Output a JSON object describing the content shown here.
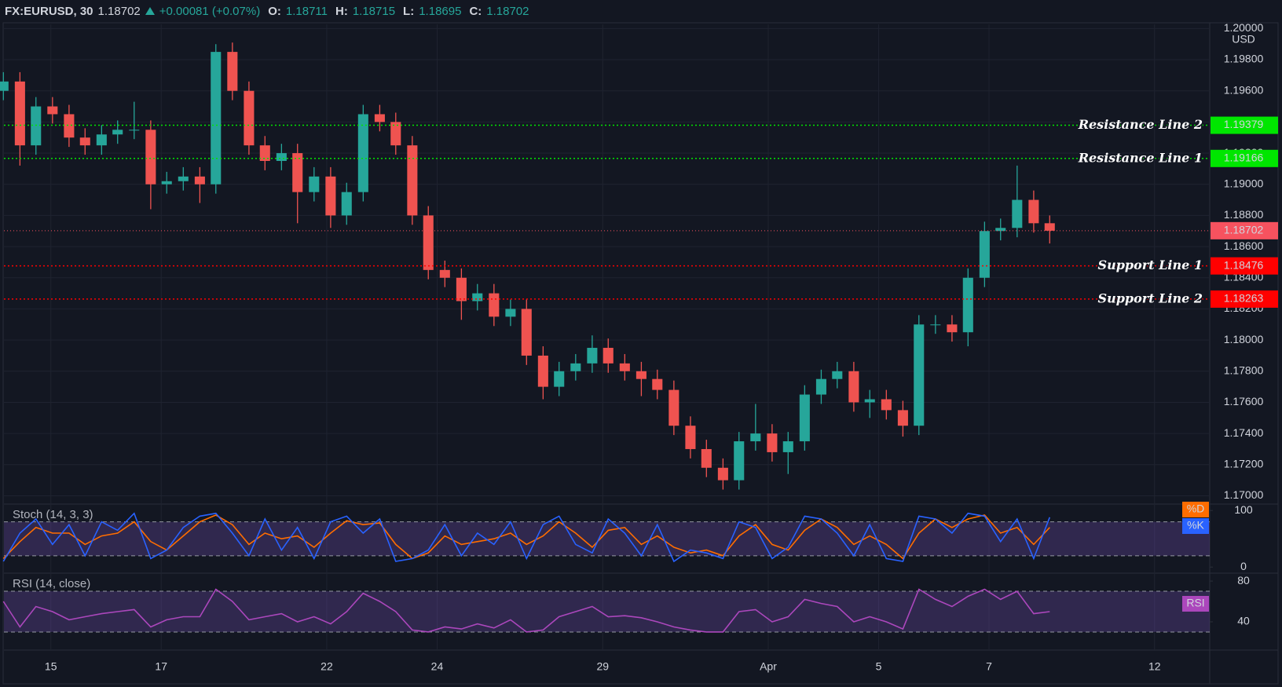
{
  "header": {
    "symbol": "FX:EURUSD, 30",
    "last": 1.18702,
    "change": "+0.00081 (+0.07%)",
    "ohlc": [
      {
        "label": "O:",
        "value": 1.18711
      },
      {
        "label": "H:",
        "value": 1.18715
      },
      {
        "label": "L:",
        "value": 1.18695
      },
      {
        "label": "C:",
        "value": 1.18702
      }
    ]
  },
  "chart_data": [
    {
      "type": "candlestick",
      "unit": "USD",
      "up_color": "#26a69a",
      "down_color": "#ef5350",
      "grid": true,
      "ylim": [
        1.16952,
        1.20027
      ],
      "yticks": [
        {
          "value": 1.17,
          "label": "1.17000"
        },
        {
          "value": 1.172,
          "label": "1.17200"
        },
        {
          "value": 1.174,
          "label": "1.17400"
        },
        {
          "value": 1.176,
          "label": "1.17600"
        },
        {
          "value": 1.178,
          "label": "1.17800"
        },
        {
          "value": 1.18,
          "label": "1.18000"
        },
        {
          "value": 1.182,
          "label": "1.18200"
        },
        {
          "value": 1.184,
          "label": "1.18400"
        },
        {
          "value": 1.186,
          "label": "1.18600"
        },
        {
          "value": 1.188,
          "label": "1.18800"
        },
        {
          "value": 1.19,
          "label": "1.19000"
        },
        {
          "value": 1.192,
          "label": "1.19200"
        },
        {
          "value": 1.194,
          "label": "1.19400"
        },
        {
          "value": 1.196,
          "label": "1.19600"
        },
        {
          "value": 1.198,
          "label": "1.19800"
        },
        {
          "value": 1.2,
          "label": "1.20000"
        }
      ],
      "xlim": [
        -0.85,
        21
      ],
      "x": [
        -0.86,
        -0.56,
        -0.27,
        0.03,
        0.33,
        0.62,
        0.92,
        1.21,
        1.51,
        1.81,
        2.1,
        2.4,
        2.7,
        2.99,
        3.29,
        3.59,
        3.88,
        4.18,
        4.47,
        4.77,
        5.07,
        5.36,
        5.66,
        5.96,
        6.25,
        6.55,
        6.84,
        7.14,
        7.44,
        7.73,
        8.03,
        8.33,
        8.62,
        8.92,
        9.21,
        9.51,
        9.81,
        10.1,
        10.4,
        10.7,
        10.99,
        11.29,
        11.59,
        11.88,
        12.18,
        12.47,
        12.77,
        13.07,
        13.36,
        13.66,
        13.96,
        14.25,
        14.55,
        14.84,
        15.14,
        15.44,
        15.73,
        16.03,
        16.33,
        16.62,
        16.92,
        17.21,
        17.51,
        17.81,
        18.1
      ],
      "open": [
        1.196,
        1.1966,
        1.1925,
        1.195,
        1.1945,
        1.193,
        1.1925,
        1.1932,
        1.1935,
        1.1935,
        1.19,
        1.1902,
        1.1905,
        1.19,
        1.1985,
        1.196,
        1.1925,
        1.1915,
        1.192,
        1.1895,
        1.1905,
        1.188,
        1.1895,
        1.1945,
        1.194,
        1.1925,
        1.188,
        1.1845,
        1.184,
        1.1825,
        1.183,
        1.1815,
        1.182,
        1.179,
        1.177,
        1.178,
        1.1785,
        1.1795,
        1.1785,
        1.178,
        1.1775,
        1.1768,
        1.1745,
        1.173,
        1.1718,
        1.171,
        1.1735,
        1.174,
        1.1728,
        1.1735,
        1.1765,
        1.1775,
        1.178,
        1.176,
        1.1762,
        1.1755,
        1.1745,
        1.181,
        1.181,
        1.1805,
        1.184,
        1.187,
        1.1872,
        1.189,
        1.1875
      ],
      "high": [
        1.1972,
        1.1972,
        1.1956,
        1.1956,
        1.1951,
        1.1936,
        1.1938,
        1.1941,
        1.1953,
        1.1941,
        1.1908,
        1.1911,
        1.1911,
        1.199,
        1.1991,
        1.1966,
        1.1931,
        1.1926,
        1.1926,
        1.1911,
        1.1911,
        1.1901,
        1.1951,
        1.1951,
        1.1946,
        1.1931,
        1.1886,
        1.1851,
        1.1846,
        1.1836,
        1.1836,
        1.1826,
        1.1826,
        1.1796,
        1.1786,
        1.1791,
        1.1803,
        1.1801,
        1.1791,
        1.1786,
        1.1781,
        1.1774,
        1.1751,
        1.1736,
        1.1724,
        1.1741,
        1.1759,
        1.1746,
        1.1741,
        1.1771,
        1.1781,
        1.1786,
        1.1786,
        1.1768,
        1.1768,
        1.1761,
        1.1816,
        1.1816,
        1.1816,
        1.1846,
        1.1876,
        1.1878,
        1.1912,
        1.1896,
        1.188
      ],
      "low": [
        1.1954,
        1.1912,
        1.1919,
        1.1939,
        1.1924,
        1.1919,
        1.1919,
        1.1926,
        1.1929,
        1.1884,
        1.1894,
        1.1896,
        1.1888,
        1.1894,
        1.1954,
        1.1919,
        1.1909,
        1.1909,
        1.1875,
        1.1889,
        1.1872,
        1.1874,
        1.1889,
        1.1934,
        1.1919,
        1.1874,
        1.1839,
        1.1834,
        1.1813,
        1.1819,
        1.1809,
        1.1809,
        1.1784,
        1.1762,
        1.1764,
        1.1774,
        1.1779,
        1.1779,
        1.1774,
        1.1764,
        1.1762,
        1.1739,
        1.1724,
        1.1712,
        1.1704,
        1.1704,
        1.1729,
        1.1722,
        1.1714,
        1.1729,
        1.1759,
        1.1769,
        1.1754,
        1.175,
        1.1749,
        1.1738,
        1.1739,
        1.1804,
        1.1799,
        1.1796,
        1.1834,
        1.1864,
        1.1866,
        1.1869,
        1.1862
      ],
      "close": [
        1.1966,
        1.1925,
        1.195,
        1.1945,
        1.193,
        1.1925,
        1.1932,
        1.1935,
        1.1935,
        1.19,
        1.1902,
        1.1905,
        1.19,
        1.1985,
        1.196,
        1.1925,
        1.1915,
        1.192,
        1.1895,
        1.1905,
        1.188,
        1.1895,
        1.1945,
        1.194,
        1.1925,
        1.188,
        1.1845,
        1.184,
        1.1825,
        1.183,
        1.1815,
        1.182,
        1.179,
        1.177,
        1.178,
        1.1785,
        1.1795,
        1.1785,
        1.178,
        1.1775,
        1.1768,
        1.1745,
        1.173,
        1.1718,
        1.171,
        1.1735,
        1.174,
        1.1728,
        1.1735,
        1.1765,
        1.1775,
        1.178,
        1.176,
        1.1762,
        1.1755,
        1.1745,
        1.181,
        1.181,
        1.1805,
        1.184,
        1.187,
        1.1872,
        1.189,
        1.1875,
        1.18702
      ],
      "last_price": {
        "value": 1.18702,
        "color": "#f7525f"
      },
      "levels": [
        {
          "name": "Resistance Line 2",
          "value": 1.19379,
          "color": "#00e600",
          "text_color": "#000000"
        },
        {
          "name": "Resistance Line 1",
          "value": 1.19166,
          "color": "#00e600",
          "text_color": "#000000"
        },
        {
          "name": "Support Line 1",
          "value": 1.18476,
          "color": "#ff0000",
          "text_color": "#ffffff"
        },
        {
          "name": "Support Line 2",
          "value": 1.18263,
          "color": "#ff0000",
          "text_color": "#ffffff"
        }
      ]
    },
    {
      "type": "line",
      "title": "Stoch (14, 3, 3)",
      "ylim": [
        -8,
        110
      ],
      "yticks": [
        0,
        100
      ],
      "bands": [
        20,
        80
      ],
      "band_color": "#7e57c2",
      "xlim": [
        -0.85,
        21
      ],
      "x": [
        -0.86,
        -0.56,
        -0.27,
        0.03,
        0.33,
        0.62,
        0.92,
        1.21,
        1.51,
        1.81,
        2.1,
        2.4,
        2.7,
        2.99,
        3.29,
        3.59,
        3.88,
        4.18,
        4.47,
        4.77,
        5.07,
        5.36,
        5.66,
        5.96,
        6.25,
        6.55,
        6.84,
        7.14,
        7.44,
        7.73,
        8.03,
        8.33,
        8.62,
        8.92,
        9.21,
        9.51,
        9.81,
        10.1,
        10.4,
        10.7,
        10.99,
        11.29,
        11.59,
        11.88,
        12.18,
        12.47,
        12.77,
        13.07,
        13.36,
        13.66,
        13.96,
        14.25,
        14.55,
        14.84,
        15.14,
        15.44,
        15.73,
        16.03,
        16.33,
        16.62,
        16.92,
        17.21,
        17.51,
        17.81,
        18.1
      ],
      "series": [
        {
          "name": "%D",
          "color": "#ff6d00",
          "values": [
            15,
            45,
            70,
            60,
            60,
            40,
            55,
            60,
            80,
            45,
            30,
            55,
            80,
            92,
            75,
            40,
            60,
            50,
            55,
            35,
            60,
            82,
            75,
            78,
            40,
            15,
            25,
            55,
            40,
            45,
            50,
            60,
            40,
            55,
            80,
            60,
            35,
            65,
            70,
            40,
            55,
            35,
            25,
            30,
            20,
            55,
            75,
            40,
            30,
            65,
            85,
            70,
            40,
            55,
            40,
            15,
            60,
            85,
            70,
            85,
            92,
            60,
            70,
            40,
            70
          ]
        },
        {
          "name": "%K",
          "color": "#2962ff",
          "values": [
            10,
            60,
            85,
            40,
            75,
            20,
            80,
            65,
            95,
            15,
            30,
            70,
            90,
            95,
            60,
            20,
            85,
            30,
            70,
            15,
            80,
            90,
            60,
            85,
            10,
            15,
            30,
            75,
            20,
            60,
            40,
            80,
            15,
            75,
            90,
            40,
            25,
            85,
            60,
            20,
            75,
            10,
            30,
            25,
            15,
            80,
            70,
            15,
            35,
            90,
            85,
            60,
            20,
            75,
            15,
            10,
            90,
            85,
            60,
            95,
            90,
            45,
            85,
            15,
            88
          ]
        }
      ]
    },
    {
      "type": "line",
      "title": "RSI (14, close)",
      "ylim": [
        13,
        87
      ],
      "yticks": [
        40,
        80
      ],
      "bands": [
        30,
        70
      ],
      "band_color": "#7e57c2",
      "xlim": [
        -0.85,
        21
      ],
      "xticks": [
        {
          "value": 0,
          "label": "15"
        },
        {
          "value": 2,
          "label": "17"
        },
        {
          "value": 5,
          "label": "22"
        },
        {
          "value": 7,
          "label": "24"
        },
        {
          "value": 10,
          "label": "29"
        },
        {
          "value": 13,
          "label": "Apr"
        },
        {
          "value": 15,
          "label": "5"
        },
        {
          "value": 17,
          "label": "7"
        },
        {
          "value": 20,
          "label": "12"
        }
      ],
      "x": [
        -0.86,
        -0.56,
        -0.27,
        0.03,
        0.33,
        0.62,
        0.92,
        1.21,
        1.51,
        1.81,
        2.1,
        2.4,
        2.7,
        2.99,
        3.29,
        3.59,
        3.88,
        4.18,
        4.47,
        4.77,
        5.07,
        5.36,
        5.66,
        5.96,
        6.25,
        6.55,
        6.84,
        7.14,
        7.44,
        7.73,
        8.03,
        8.33,
        8.62,
        8.92,
        9.21,
        9.51,
        9.81,
        10.1,
        10.4,
        10.7,
        10.99,
        11.29,
        11.59,
        11.88,
        12.18,
        12.47,
        12.77,
        13.07,
        13.36,
        13.66,
        13.96,
        14.25,
        14.55,
        14.84,
        15.14,
        15.44,
        15.73,
        16.03,
        16.33,
        16.62,
        16.92,
        17.21,
        17.51,
        17.81,
        18.1
      ],
      "series": [
        {
          "name": "RSI",
          "color": "#ab47bc",
          "values": [
            60,
            35,
            55,
            50,
            42,
            45,
            48,
            50,
            52,
            35,
            42,
            45,
            45,
            72,
            60,
            42,
            45,
            48,
            40,
            45,
            38,
            50,
            68,
            60,
            50,
            32,
            30,
            35,
            33,
            38,
            34,
            42,
            30,
            32,
            45,
            50,
            55,
            45,
            46,
            44,
            40,
            35,
            32,
            30,
            30,
            50,
            52,
            40,
            45,
            62,
            58,
            55,
            40,
            45,
            40,
            33,
            72,
            62,
            55,
            65,
            72,
            62,
            70,
            48,
            50
          ]
        }
      ]
    }
  ]
}
